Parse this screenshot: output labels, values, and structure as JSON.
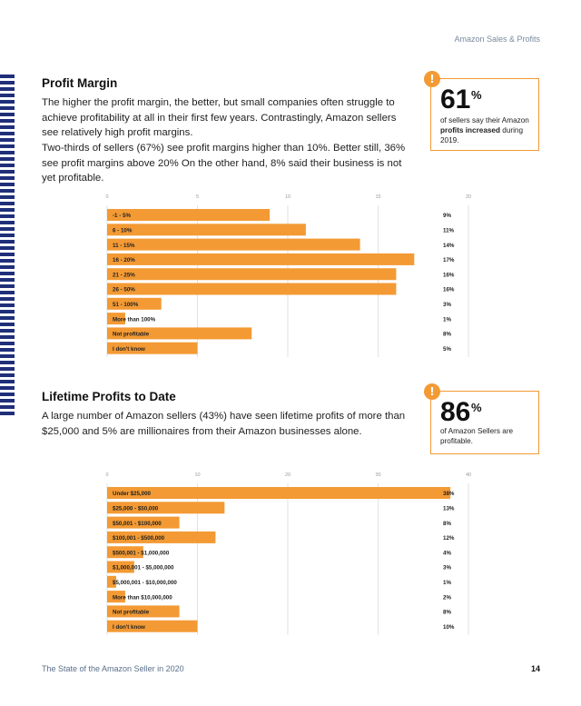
{
  "header": {
    "tag": "Amazon Sales & Profits"
  },
  "section1": {
    "title": "Profit Margin",
    "para1": "The higher the profit margin, the better, but small companies often struggle to achieve profitability at all in their first few years. Contrastingly, Amazon sellers see relatively high profit margins.",
    "para2": "Two-thirds of sellers (67%) see profit margins higher than 10%. Better still, 36% see profit margins above 20% On the other hand, 8% said their business is not yet profitable.",
    "callout": {
      "number": "61",
      "suffix": "%",
      "text_before": "of sellers say their Amazon ",
      "text_bold": "profits increased",
      "text_after": " during 2019."
    }
  },
  "section2": {
    "title": "Lifetime Profits to Date",
    "para1": "A large number of Amazon sellers (43%) have seen lifetime profits of more than $25,000 and 5% are millionaires from their Amazon businesses alone.",
    "callout": {
      "number": "86",
      "suffix": "%",
      "text": "of Amazon Sellers are profitable."
    }
  },
  "footer": {
    "left": "The State of the Amazon Seller in 2020",
    "page": "14"
  },
  "colors": {
    "bar": "#f39a34",
    "accent": "#f39a34",
    "stripe": "#1f2f7a"
  },
  "chart_data": [
    {
      "type": "bar",
      "orientation": "horizontal",
      "title": "",
      "categories": [
        "-1 - 5%",
        "6 - 10%",
        "11 - 15%",
        "16 - 20%",
        "21 - 25%",
        "26 - 50%",
        "51 - 100%",
        "More than 100%",
        "Not profitable",
        "I don't know"
      ],
      "values": [
        9,
        11,
        14,
        17,
        16,
        16,
        3,
        1,
        8,
        5
      ],
      "value_labels": [
        "9%",
        "11%",
        "14%",
        "17%",
        "16%",
        "16%",
        "3%",
        "1%",
        "8%",
        "5%"
      ],
      "xticks": [
        "0",
        "5",
        "10",
        "15",
        "20"
      ],
      "xlim": [
        0,
        20
      ],
      "grid": true
    },
    {
      "type": "bar",
      "orientation": "horizontal",
      "title": "",
      "categories": [
        "Under $25,000",
        "$25,000 - $50,000",
        "$50,001 - $100,000",
        "$100,001 - $500,000",
        "$500,001 - $1,000,000",
        "$1,000,001 - $5,000,000",
        "$5,000,001 - $10,000,000",
        "More than $10,000,000",
        "Not profitable",
        "I don't know"
      ],
      "values": [
        38,
        13,
        8,
        12,
        4,
        3,
        1,
        2,
        8,
        10
      ],
      "value_labels": [
        "38%",
        "13%",
        "8%",
        "12%",
        "4%",
        "3%",
        "1%",
        "2%",
        "8%",
        "10%"
      ],
      "xticks": [
        "0",
        "10",
        "20",
        "30",
        "40"
      ],
      "xlim": [
        0,
        40
      ],
      "grid": true
    }
  ]
}
